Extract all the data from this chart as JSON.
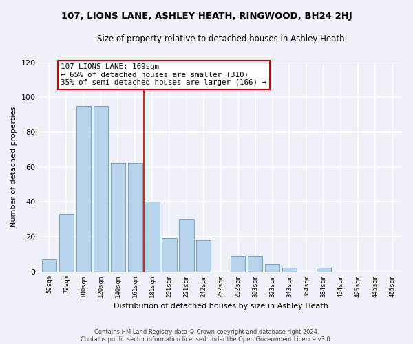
{
  "title": "107, LIONS LANE, ASHLEY HEATH, RINGWOOD, BH24 2HJ",
  "subtitle": "Size of property relative to detached houses in Ashley Heath",
  "xlabel": "Distribution of detached houses by size in Ashley Heath",
  "ylabel": "Number of detached properties",
  "bar_labels": [
    "59sqm",
    "79sqm",
    "100sqm",
    "120sqm",
    "140sqm",
    "161sqm",
    "181sqm",
    "201sqm",
    "221sqm",
    "242sqm",
    "262sqm",
    "282sqm",
    "303sqm",
    "323sqm",
    "343sqm",
    "364sqm",
    "384sqm",
    "404sqm",
    "425sqm",
    "445sqm",
    "465sqm"
  ],
  "bar_values": [
    7,
    33,
    95,
    95,
    62,
    62,
    40,
    19,
    30,
    18,
    0,
    9,
    9,
    4,
    2,
    0,
    2,
    0,
    0,
    0,
    0
  ],
  "bar_color": "#b8d4ea",
  "bar_edge_color": "#6699bb",
  "vline_x_idx": 5.5,
  "vline_color": "#cc0000",
  "annotation_title": "107 LIONS LANE: 169sqm",
  "annotation_line1": "← 65% of detached houses are smaller (310)",
  "annotation_line2": "35% of semi-detached houses are larger (166) →",
  "annotation_box_color": "#ffffff",
  "annotation_box_edge": "#cc0000",
  "ylim": [
    0,
    120
  ],
  "yticks": [
    0,
    20,
    40,
    60,
    80,
    100,
    120
  ],
  "footer1": "Contains HM Land Registry data © Crown copyright and database right 2024.",
  "footer2": "Contains public sector information licensed under the Open Government Licence v3.0.",
  "background_color": "#eef2f8"
}
